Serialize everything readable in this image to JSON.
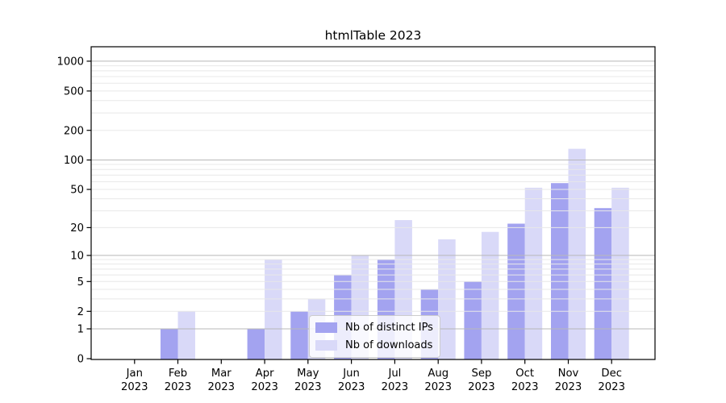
{
  "title": "htmlTable 2023",
  "chart_data": {
    "type": "bar",
    "title": "htmlTable 2023",
    "categories": [
      "Jan",
      "Feb",
      "Mar",
      "Apr",
      "May",
      "Jun",
      "Jul",
      "Aug",
      "Sep",
      "Oct",
      "Nov",
      "Dec"
    ],
    "category_year": "2023",
    "series": [
      {
        "name": "Nb of distinct IPs",
        "color": "#a3a3f0",
        "values": [
          0,
          1,
          0,
          1,
          2,
          6,
          9,
          4,
          5,
          22,
          58,
          32
        ]
      },
      {
        "name": "Nb of downloads",
        "color": "#d9d9f8",
        "values": [
          0,
          2,
          0,
          9,
          3,
          10,
          24,
          15,
          18,
          52,
          130,
          52
        ]
      }
    ],
    "yticks": [
      0,
      1,
      2,
      5,
      10,
      20,
      50,
      100,
      200,
      500,
      1000
    ],
    "ylim": [
      0,
      1400
    ],
    "scale": "log1p",
    "grid": true,
    "grid_above_bars": true,
    "legend_position": "lower center",
    "colors": {
      "major_grid": "#b8b8b8",
      "minor_grid": "#e8e8e8",
      "spine": "#000000",
      "text": "#000000"
    }
  }
}
